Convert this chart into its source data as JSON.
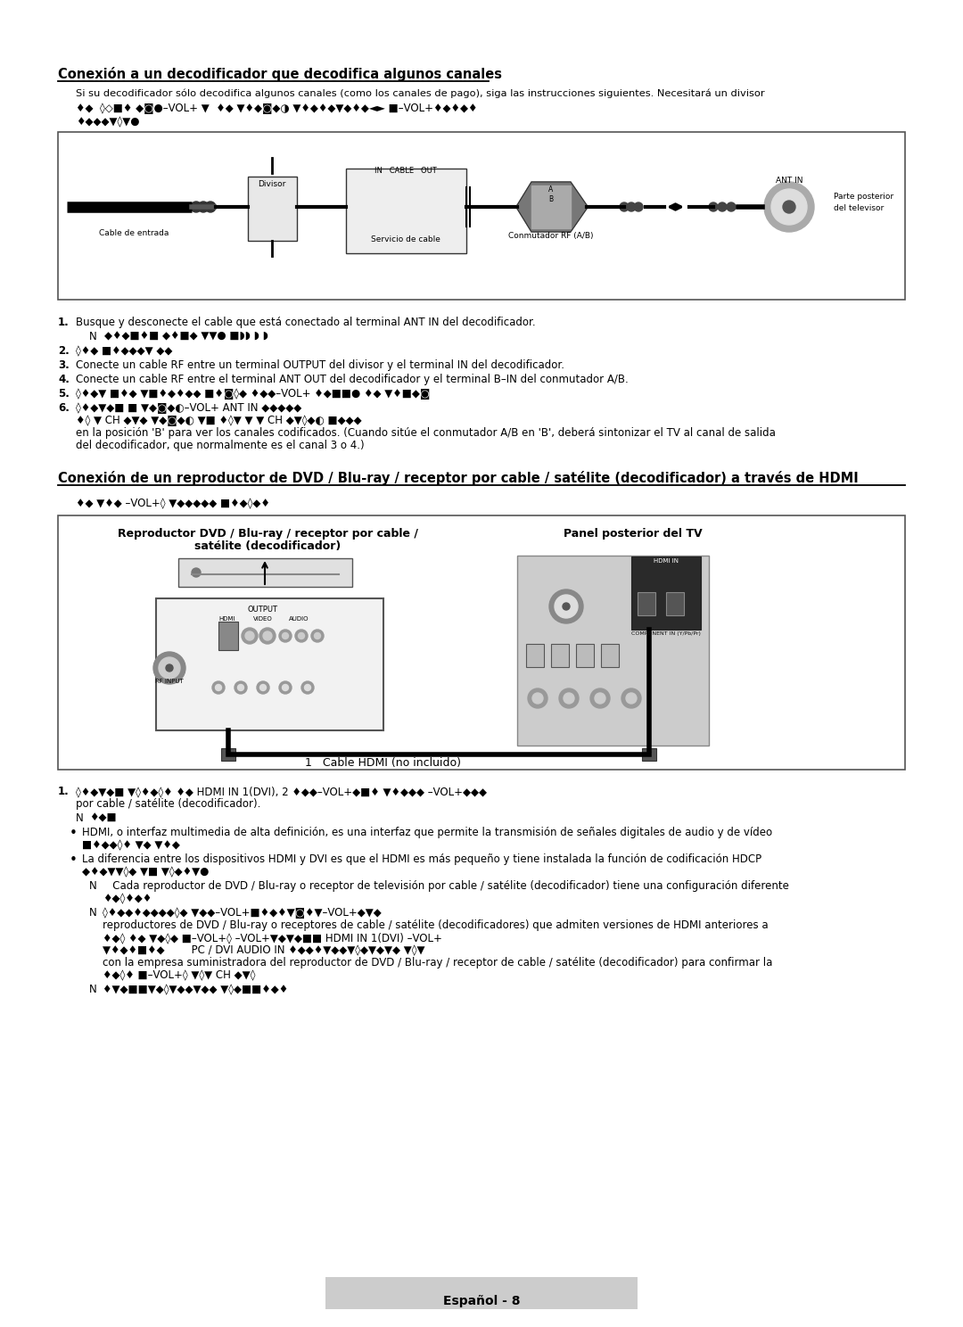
{
  "bg_color": "#ffffff",
  "footer_bg": "#cccccc",
  "footer_text": "Español - 8",
  "title1": "Conexión a un decodificador que decodifica algunos canales",
  "title2": "Conexión de un reproductor de DVD / Blu-ray / receptor por cable / satélite (decodificador) a través de HDMI",
  "section1_intro": "Si su decodificador sólo decodifica algunos canales (como los canales de pago), siga las instrucciones siguientes. Necesitará un divisor",
  "step1_text": "Busque y desconecte el cable que está conectado al terminal ANT IN del decodificador.",
  "step3_text": "Conecte un cable RF entre un terminal OUTPUT del divisor y el terminal IN del decodificador.",
  "step4_text": "Conecte un cable RF entre el terminal ANT OUT del decodificador y el terminal B–IN del conmutador A/B.",
  "step6_line3": "en la posición 'B' para ver los canales codificados. (Cuando sitúe el conmutador A/B en 'B', deberá sintonizar el TV al canal de salida",
  "step6_line4": "del decodificador, que normalmente es el canal 3 o 4.)",
  "diagram2_left_title_line1": "Reproductor DVD / Blu-ray / receptor por cable /",
  "diagram2_left_title_line2": "satélite (decodificador)",
  "diagram2_right_title": "Panel posterior del TV",
  "cable_hdmi_label": "1   Cable HDMI (no incluido)",
  "step_sec2_1_text2": "por cable / satélite (decodificador).",
  "bullet1_text": "HDMI, o interfaz multimedia de alta definición, es una interfaz que permite la transmisión de señales digitales de audio y de vídeo",
  "bullet2_text": "La diferencia entre los dispositivos HDMI y DVI es que el HDMI es más pequeño y tiene instalada la función de codificación HDCP",
  "note_n2_text": "   Cada reproductor de DVD / Blu-ray o receptor de televisión por cable / satélite (decodificador) tiene una configuración diferente",
  "note_n3_line2": "reproductores de DVD / Blu-ray o receptores de cable / satélite (decodificadores) que admiten versiones de HDMI anteriores a",
  "note_n3_line5": "con la empresa suministradora del reproductor de DVD / Blu-ray / receptor de cable / satélite (decodificador) para confirmar la"
}
